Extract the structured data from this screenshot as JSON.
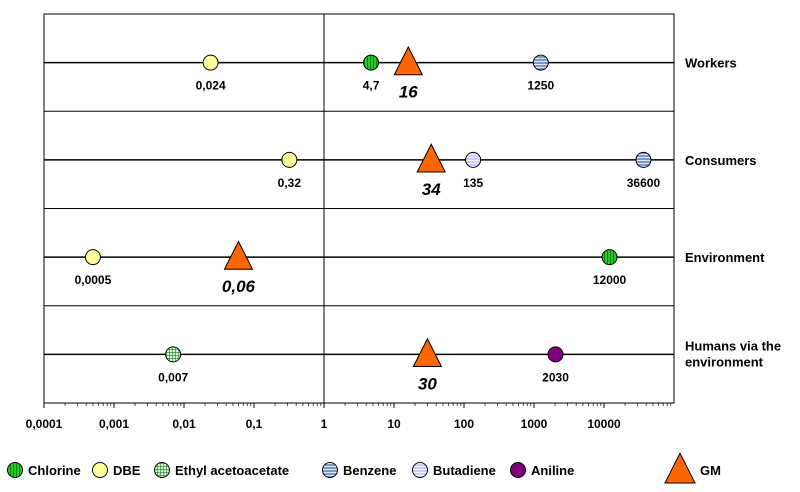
{
  "chart_data": {
    "type": "scatter",
    "x_scale": "log",
    "xlim": [
      0.0001,
      100000
    ],
    "x_ticks": [
      "0,0001",
      "0,001",
      "0,01",
      "0,1",
      "1",
      "10",
      "100",
      "1000",
      "10000"
    ],
    "rows": [
      "Workers",
      "Consumers",
      "Environment",
      "Humans via the environment"
    ],
    "series": [
      {
        "name": "Chlorine",
        "points": [
          {
            "row": "Workers",
            "x": 4.7,
            "label": "4,7"
          },
          {
            "row": "Environment",
            "x": 12000,
            "label": "12000"
          }
        ]
      },
      {
        "name": "DBE",
        "points": [
          {
            "row": "Workers",
            "x": 0.024,
            "label": "0,024"
          },
          {
            "row": "Consumers",
            "x": 0.32,
            "label": "0,32"
          },
          {
            "row": "Environment",
            "x": 0.0005,
            "label": "0,0005"
          }
        ]
      },
      {
        "name": "Ethyl acetoacetate",
        "points": [
          {
            "row": "Humans via the environment",
            "x": 0.007,
            "label": "0,007"
          }
        ]
      },
      {
        "name": "Benzene",
        "points": [
          {
            "row": "Workers",
            "x": 1250,
            "label": "1250"
          },
          {
            "row": "Consumers",
            "x": 36600,
            "label": "36600"
          }
        ]
      },
      {
        "name": "Butadiene",
        "points": [
          {
            "row": "Consumers",
            "x": 135,
            "label": "135"
          }
        ]
      },
      {
        "name": "Aniline",
        "points": [
          {
            "row": "Humans via the environment",
            "x": 2030,
            "label": "2030"
          }
        ]
      },
      {
        "name": "GM",
        "points": [
          {
            "row": "Workers",
            "x": 16,
            "label": "16"
          },
          {
            "row": "Consumers",
            "x": 34,
            "label": "34"
          },
          {
            "row": "Environment",
            "x": 0.06,
            "label": "0,06"
          },
          {
            "row": "Humans via the environment",
            "x": 30,
            "label": "30"
          }
        ]
      }
    ],
    "colors": {
      "Chlorine": "#22cc22",
      "DBE": "#ffff99",
      "Ethyl acetoacetate": "#ccffcc",
      "Benzene": "#7799cc",
      "Butadiene": "#ccccff",
      "Aniline": "#800080",
      "GM": "#ff6600"
    },
    "legend": [
      "Chlorine",
      "DBE",
      "Ethyl acetoacetate",
      "Benzene",
      "Butadiene",
      "Aniline",
      "GM"
    ],
    "legend_position": "bottom",
    "grid": false
  }
}
